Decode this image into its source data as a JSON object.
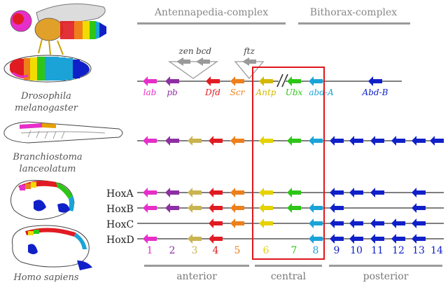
{
  "headers": {
    "antp_complex": "Antennapedia-complex",
    "bx_complex": "Bithorax-complex",
    "anterior": "anterior",
    "central": "central",
    "posterior": "posterior"
  },
  "species": {
    "drosophila": [
      "Drosophila",
      "melanogaster"
    ],
    "branchiostoma": [
      "Branchiostoma",
      "lanceolatum"
    ],
    "homo": "Homo sapiens"
  },
  "extra_genes": {
    "zen": "zen",
    "bcd": "bcd",
    "ftz": "ftz"
  },
  "drosophila_genes": [
    {
      "name": "lab",
      "color": "#e62ec9"
    },
    {
      "name": "pb",
      "color": "#8e2fa3"
    },
    {
      "name": "Dfd",
      "color": "#e11b22"
    },
    {
      "name": "Scr",
      "color": "#ef7f1a"
    },
    {
      "name": "Antp",
      "color": "#d4b800"
    },
    {
      "name": "Ubx",
      "color": "#2ec616"
    },
    {
      "name": "abd-A",
      "color": "#1ba3d8"
    },
    {
      "name": "Abd-B",
      "color": "#1020c8"
    }
  ],
  "hox_clusters": [
    "HoxA",
    "HoxB",
    "HoxC",
    "HoxD"
  ],
  "paralog_numbers": [
    "1",
    "2",
    "3",
    "4",
    "5",
    "6",
    "7",
    "8",
    "9",
    "10",
    "11",
    "12",
    "13",
    "14"
  ],
  "colors": {
    "g1": "#e62ec9",
    "g2": "#8e2fa3",
    "g3": "#c9b451",
    "g4": "#e11b22",
    "g5": "#ef7f1a",
    "g6": "#e6d200",
    "g7": "#2ec616",
    "g8": "#1ba3d8",
    "post": "#1020c8",
    "grey": "#9a9a9a",
    "box": "#e0161b",
    "line": "#333333"
  },
  "presence": {
    "Branchiostoma": [
      1,
      2,
      3,
      4,
      5,
      6,
      7,
      8,
      9,
      10,
      11,
      12,
      13,
      14
    ],
    "HoxA": [
      1,
      2,
      3,
      4,
      5,
      6,
      7,
      9,
      10,
      11,
      13
    ],
    "HoxB": [
      1,
      2,
      3,
      4,
      5,
      6,
      7,
      8,
      9,
      13
    ],
    "HoxC": [
      4,
      5,
      6,
      8,
      9,
      10,
      11,
      12,
      13
    ],
    "HoxD": [
      1,
      3,
      4,
      8,
      9,
      10,
      11,
      12,
      13
    ]
  }
}
